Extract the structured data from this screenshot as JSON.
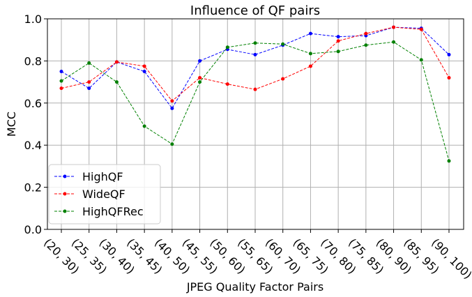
{
  "chart_data": {
    "type": "line",
    "title": "Influence of QF pairs",
    "x_label": "JPEG Quality Factor Pairs",
    "y_label": "MCC",
    "categories": [
      "(20, 30)",
      "(25, 35)",
      "(30, 40)",
      "(35, 45)",
      "(40, 50)",
      "(45, 55)",
      "(50, 60)",
      "(55, 65)",
      "(60, 70)",
      "(65, 75)",
      "(70, 80)",
      "(75, 85)",
      "(80, 90)",
      "(85, 95)",
      "(90, 100)"
    ],
    "series": [
      {
        "name": "HighQF",
        "color": "#0000ff",
        "values": [
          0.75,
          0.67,
          0.795,
          0.75,
          0.575,
          0.8,
          0.855,
          0.83,
          0.875,
          0.93,
          0.915,
          0.92,
          0.96,
          0.955,
          0.83
        ]
      },
      {
        "name": "WideQF",
        "color": "#ff0000",
        "values": [
          0.67,
          0.7,
          0.795,
          0.775,
          0.61,
          0.72,
          0.69,
          0.665,
          0.715,
          0.775,
          0.895,
          0.93,
          0.96,
          0.95,
          0.72
        ]
      },
      {
        "name": "HighQFRec",
        "color": "#008000",
        "values": [
          0.705,
          0.79,
          0.7,
          0.49,
          0.405,
          0.7,
          0.865,
          0.885,
          0.88,
          0.835,
          0.845,
          0.875,
          0.89,
          0.805,
          0.325
        ]
      }
    ],
    "ylim": [
      0,
      1
    ],
    "yticks": [
      {
        "value": 0,
        "label": "0.0"
      },
      {
        "value": 0.2,
        "label": "0.2"
      },
      {
        "value": 0.4,
        "label": "0.4"
      },
      {
        "value": 0.6,
        "label": "0.6"
      },
      {
        "value": 0.8,
        "label": "0.8"
      },
      {
        "value": 1,
        "label": "1.0"
      }
    ],
    "grid": true,
    "legend": "lower left"
  }
}
